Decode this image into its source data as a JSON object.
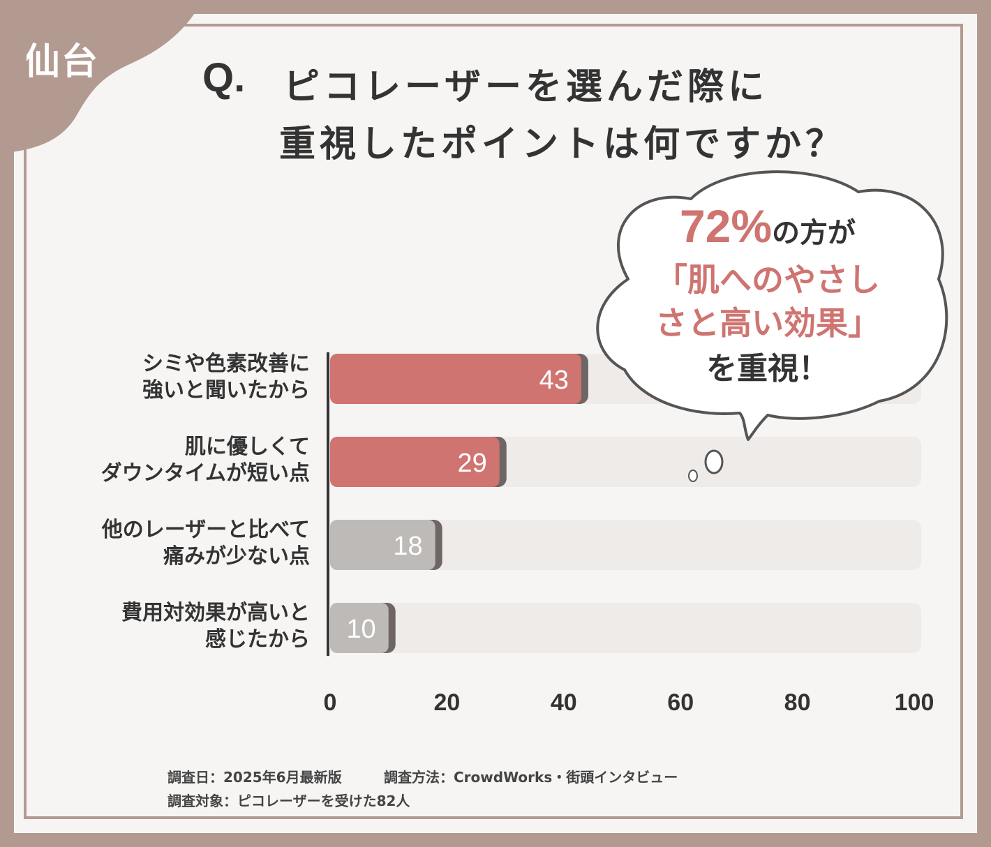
{
  "header": {
    "city": "仙台",
    "q_mark": "Q.",
    "question_line1": "ピコレーザーを選んだ際に",
    "question_line2": "重視したポイントは何ですか？"
  },
  "callout": {
    "percent": "72%",
    "line1_suffix": "の方が",
    "line2": "「肌へのやさし",
    "line3": "さと高い効果」",
    "line4": "を重視！"
  },
  "footnotes": {
    "line1_left": "調査日：2025年6月最新版",
    "line1_right": "調査方法：CrowdWorks・街頭インタビュー",
    "line2": "調査対象：ピコレーザーを受けた82人"
  },
  "colors": {
    "frame": "#b39a91",
    "highlight": "#cf7470",
    "neutral_bar": "#bdbab8",
    "track": "#efebe9",
    "text": "#333333"
  },
  "chart_data": {
    "type": "bar",
    "orientation": "horizontal",
    "categories": [
      [
        "シミや色素改善に",
        "強いと聞いたから"
      ],
      [
        "肌に優しくて",
        "ダウンタイムが短い点"
      ],
      [
        "他のレーザーと比べて",
        "痛みが少ない点"
      ],
      [
        "費用対効果が高いと",
        "感じたから"
      ]
    ],
    "values": [
      43,
      29,
      18,
      10
    ],
    "highlighted": [
      true,
      true,
      false,
      false
    ],
    "xlim": [
      0,
      100
    ],
    "xticks": [
      "0",
      "20",
      "40",
      "60",
      "80",
      "100"
    ],
    "grid": false,
    "legend": "none"
  }
}
